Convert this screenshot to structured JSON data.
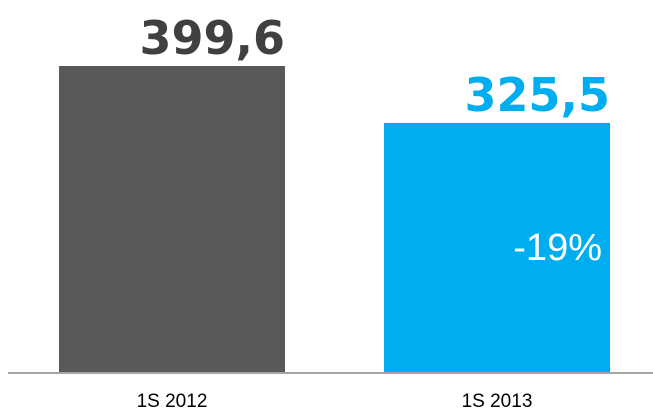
{
  "chart_data": {
    "type": "bar",
    "categories": [
      "1S 2012",
      "1S 2013"
    ],
    "values": [
      399.6,
      325.5
    ],
    "value_labels": [
      "399,6",
      "325,5"
    ],
    "colors": [
      "#595959",
      "#00aeef"
    ],
    "label_colors": [
      "#404040",
      "#00aeef"
    ],
    "change_label": "-19%",
    "change_label_color": "#ffffff",
    "ylim": [
      0,
      430
    ],
    "axis_color": "#a6a6a6",
    "grid": false,
    "legend": "none",
    "title": "",
    "xlabel": "",
    "ylabel": ""
  }
}
